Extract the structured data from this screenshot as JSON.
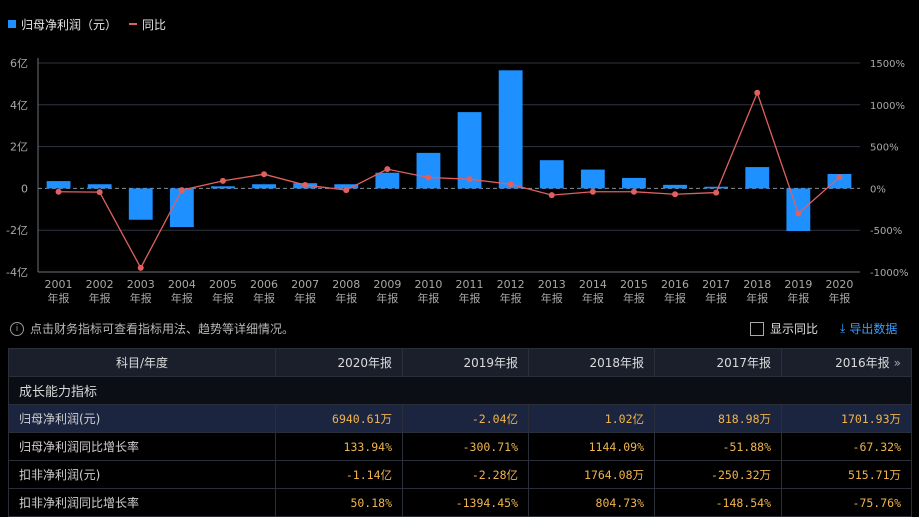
{
  "legend": {
    "bar_label": "归母净利润（元）",
    "line_label": "同比"
  },
  "colors": {
    "bar": "#1e90ff",
    "line": "#e06060",
    "grid": "#2f3440",
    "value": "#f0b44c"
  },
  "chart_data": {
    "type": "bar",
    "categories": [
      "2001",
      "2002",
      "2003",
      "2004",
      "2005",
      "2006",
      "2007",
      "2008",
      "2009",
      "2010",
      "2011",
      "2012",
      "2013",
      "2014",
      "2015",
      "2016",
      "2017",
      "2018",
      "2019",
      "2020"
    ],
    "x_tick_labels": [
      [
        "2001",
        "年报"
      ],
      [
        "2002",
        "年报"
      ],
      [
        "2003",
        "年报"
      ],
      [
        "2004",
        "年报"
      ],
      [
        "2005",
        "年报"
      ],
      [
        "2006",
        "年报"
      ],
      [
        "2007",
        "年报"
      ],
      [
        "2008",
        "年报"
      ],
      [
        "2009",
        "年报"
      ],
      [
        "2010",
        "年报"
      ],
      [
        "2011",
        "年报"
      ],
      [
        "2012",
        "年报"
      ],
      [
        "2013",
        "年报"
      ],
      [
        "2014",
        "年报"
      ],
      [
        "2015",
        "年报"
      ],
      [
        "2016",
        "年报"
      ],
      [
        "2017",
        "年报"
      ],
      [
        "2018",
        "年报"
      ],
      [
        "2019",
        "年报"
      ],
      [
        "2020",
        "年报"
      ]
    ],
    "series": [
      {
        "name": "归母净利润（元）",
        "type": "bar",
        "axis": "left",
        "unit": "亿",
        "values": [
          0.35,
          0.2,
          -1.5,
          -1.85,
          0.1,
          0.2,
          0.25,
          0.2,
          0.75,
          1.7,
          3.65,
          5.65,
          1.35,
          0.9,
          0.5,
          0.17,
          0.08,
          1.02,
          -2.04,
          0.69
        ]
      },
      {
        "name": "同比",
        "type": "line",
        "axis": "right",
        "unit": "%",
        "values": [
          -40,
          -45,
          -950,
          -20,
          90,
          170,
          40,
          -20,
          230,
          130,
          110,
          50,
          -80,
          -40,
          -40,
          -70,
          -50,
          1144,
          -300,
          134
        ]
      }
    ],
    "y_left": {
      "ticks": [
        6,
        4,
        2,
        0,
        -2,
        -4
      ],
      "tick_labels": [
        "6亿",
        "4亿",
        "2亿",
        "0",
        "-2亿",
        "-4亿"
      ],
      "range": [
        -4,
        6
      ]
    },
    "y_right": {
      "ticks": [
        1500,
        1000,
        500,
        0,
        -500,
        -1000
      ],
      "tick_labels": [
        "1500%",
        "1000%",
        "500%",
        "0%",
        "-500%",
        "-1000%"
      ],
      "range": [
        -1000,
        1500
      ]
    },
    "grid": true,
    "legend_position": "top-left"
  },
  "info_text": "点击财务指标可查看指标用法、趋势等详细情况。",
  "toggle_label": "显示同比",
  "export_label": "导出数据",
  "table": {
    "header": [
      "科目/年度",
      "2020年报",
      "2019年报",
      "2018年报",
      "2017年报",
      "2016年报"
    ],
    "section_title": "成长能力指标",
    "rows": [
      {
        "name": "归母净利润(元)",
        "values": [
          "6940.61万",
          "-2.04亿",
          "1.02亿",
          "818.98万",
          "1701.93万"
        ]
      },
      {
        "name": "归母净利润同比增长率",
        "values": [
          "133.94%",
          "-300.71%",
          "1144.09%",
          "-51.88%",
          "-67.32%"
        ]
      },
      {
        "name": "扣非净利润(元)",
        "values": [
          "-1.14亿",
          "-2.28亿",
          "1764.08万",
          "-250.32万",
          "515.71万"
        ]
      },
      {
        "name": "扣非净利润同比增长率",
        "values": [
          "50.18%",
          "-1394.45%",
          "804.73%",
          "-148.54%",
          "-75.76%"
        ]
      }
    ]
  }
}
